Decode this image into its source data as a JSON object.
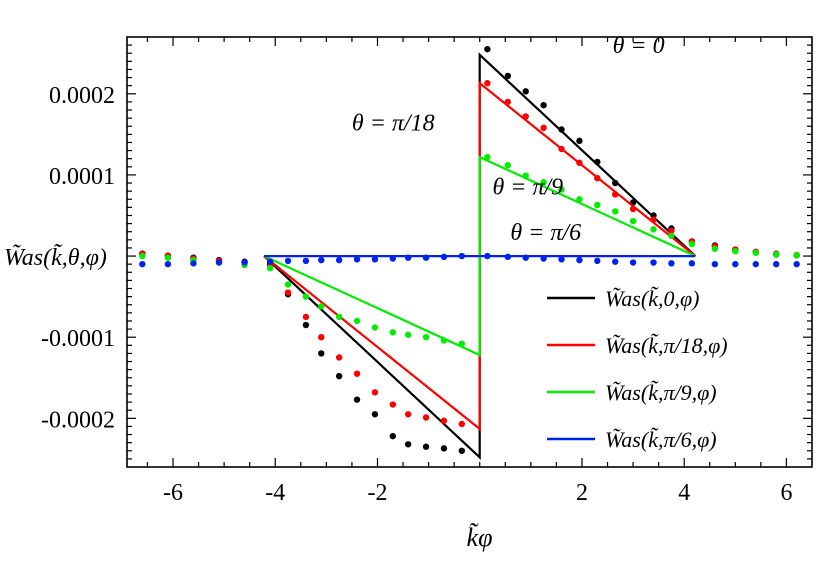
{
  "chart_data": {
    "type": "line",
    "xlabel": "k̃φ",
    "ylabel_prefix": "0",
    "ylabel": "W̃as(k̃,θ,φ)",
    "xlim": [
      -6.9,
      6.5
    ],
    "ylim": [
      -0.00026,
      0.00027
    ],
    "x_ticks": [
      -6,
      -4,
      -2,
      2,
      4,
      6
    ],
    "x_tick_labels": [
      "-6",
      "-4",
      "-2",
      "2",
      "4",
      "6"
    ],
    "y_ticks": [
      0.0002,
      0.0001,
      -0.0001,
      -0.0002
    ],
    "y_tick_labels": [
      "0.0002",
      "0.0001",
      "-0.0001",
      "-0.0002"
    ],
    "y_zero_label": "W̃as(k̃,θ,φ)",
    "grid": false,
    "legend_position": "bottom-right",
    "annotations": [
      {
        "text": "θ = 0",
        "x": 2.6,
        "y": 0.00025
      },
      {
        "text": "θ = π/18",
        "x": -2.5,
        "y": 0.000155
      },
      {
        "text": "θ = π/9",
        "x": 0.25,
        "y": 7.6e-05
      },
      {
        "text": "θ = π/6",
        "x": 0.6,
        "y": 2e-05
      }
    ],
    "series": [
      {
        "name": "W̃as(k̃,0,φ)",
        "color": "#000000",
        "line": {
          "x": [
            -4.22,
            0,
            0,
            4.22
          ],
          "y": [
            0,
            -0.000248,
            0.000248,
            0
          ]
        },
        "points": {
          "x": [
            -6.6,
            -6.1,
            -5.6,
            -5.1,
            -4.6,
            -4.1,
            -3.75,
            -3.4,
            -3.1,
            -2.75,
            -2.4,
            -2.05,
            -1.7,
            -1.4,
            -1.05,
            -0.7,
            -0.35,
            0.15,
            0.55,
            0.9,
            1.25,
            1.6,
            1.95,
            2.3,
            2.65,
            3.0,
            3.4,
            3.75,
            4.15,
            4.6,
            5.0,
            5.4,
            5.8,
            6.2
          ],
          "y": [
            3e-06,
            5e-07,
            -2e-06,
            -5e-06,
            -7e-06,
            -1e-05,
            -4.7e-05,
            -8.5e-05,
            -0.00012,
            -0.000148,
            -0.000177,
            -0.000195,
            -0.000222,
            -0.000232,
            -0.000235,
            -0.000237,
            -0.00024,
            0.000255,
            0.000222,
            0.000203,
            0.000186,
            0.000156,
            0.000142,
            0.000116,
            9e-05,
            6.6e-05,
            5e-05,
            3.4e-05,
            1.8e-05,
            1.3e-05,
            8e-06,
            5e-06,
            2e-06,
            1e-06
          ]
        }
      },
      {
        "name": "W̃as(k̃,π/18,φ)",
        "color": "#ff0000",
        "line": {
          "x": [
            -4.22,
            0,
            0,
            4.22
          ],
          "y": [
            0,
            -0.000213,
            0.000213,
            0
          ]
        },
        "points": {
          "x": [
            -6.6,
            -6.1,
            -5.6,
            -5.1,
            -4.6,
            -4.1,
            -3.75,
            -3.4,
            -3.1,
            -2.75,
            -2.4,
            -2.05,
            -1.7,
            -1.4,
            -1.05,
            -0.7,
            -0.35,
            0.15,
            0.55,
            0.9,
            1.25,
            1.6,
            1.95,
            2.3,
            2.65,
            3.0,
            3.4,
            3.75,
            4.15,
            4.6,
            5.0,
            5.4,
            5.8,
            6.2
          ],
          "y": [
            3e-06,
            5e-07,
            -3e-06,
            -6e-06,
            -8e-06,
            -1.2e-05,
            -4.5e-05,
            -7.5e-05,
            -0.0001,
            -0.000125,
            -0.000145,
            -0.000168,
            -0.000183,
            -0.000195,
            -0.000199,
            -0.000203,
            -0.000207,
            0.000213,
            0.00019,
            0.000172,
            0.000158,
            0.000132,
            0.000115,
            9.6e-05,
            7.6e-05,
            5.8e-05,
            4.5e-05,
            3.1e-05,
            1.8e-05,
            1.2e-05,
            8e-06,
            5e-06,
            3e-06,
            1e-06
          ]
        }
      },
      {
        "name": "W̃as(k̃,π/9,φ)",
        "color": "#00ee00",
        "line": {
          "x": [
            -4.22,
            0,
            0,
            4.22
          ],
          "y": [
            0,
            -0.000122,
            0.000122,
            0
          ]
        },
        "points": {
          "x": [
            -6.6,
            -6.1,
            -5.6,
            -5.1,
            -4.6,
            -4.1,
            -3.75,
            -3.4,
            -3.1,
            -2.75,
            -2.4,
            -2.05,
            -1.7,
            -1.4,
            -1.05,
            -0.7,
            -0.35,
            0.15,
            0.55,
            0.9,
            1.25,
            1.6,
            1.95,
            2.3,
            2.65,
            3.0,
            3.4,
            3.75,
            4.15,
            4.6,
            5.0,
            5.4,
            5.8,
            6.2
          ],
          "y": [
            0.0,
            -2e-06,
            -5e-06,
            -8e-06,
            -1.1e-05,
            -1.5e-05,
            -3.5e-05,
            -5e-05,
            -6.2e-05,
            -7.5e-05,
            -8e-05,
            -8.8e-05,
            -9.4e-05,
            -9.7e-05,
            -0.0001,
            -0.000104,
            -0.000108,
            0.000122,
            0.000112,
            9.9e-05,
            9.1e-05,
            8.2e-05,
            7e-05,
            6.3e-05,
            5.5e-05,
            4.3e-05,
            3.3e-05,
            2.5e-05,
            1.5e-05,
            9e-06,
            6e-06,
            4e-06,
            2e-06,
            1e-06
          ]
        }
      },
      {
        "name": "W̃as(k̃,π/6,φ)",
        "color": "#0022ee",
        "line": {
          "x": [
            -4.22,
            4.22
          ],
          "y": [
            0,
            0
          ]
        },
        "points": {
          "x": [
            -6.6,
            -6.1,
            -5.6,
            -5.1,
            -4.6,
            -4.1,
            -3.75,
            -3.4,
            -3.1,
            -2.75,
            -2.4,
            -2.05,
            -1.7,
            -1.4,
            -1.05,
            -0.7,
            -0.35,
            0.15,
            0.55,
            0.9,
            1.25,
            1.6,
            1.95,
            2.3,
            2.65,
            3.0,
            3.4,
            3.75,
            4.15,
            4.6,
            5.0,
            5.4,
            5.8,
            6.2
          ],
          "y": [
            -1e-05,
            -1e-05,
            -9e-06,
            -8e-06,
            -8e-06,
            -7e-06,
            -6e-06,
            -6e-06,
            -5e-06,
            -5e-06,
            -4e-06,
            -4e-06,
            -3e-06,
            -2e-06,
            -2e-06,
            -1e-06,
            0.0,
            0.0,
            -1e-06,
            -2e-06,
            -3e-06,
            -4e-06,
            -5e-06,
            -6e-06,
            -7e-06,
            -8e-06,
            -8e-06,
            -9e-06,
            -9e-06,
            -1e-05,
            -1e-05,
            -1e-05,
            -1e-05,
            -1e-05
          ]
        }
      }
    ]
  }
}
